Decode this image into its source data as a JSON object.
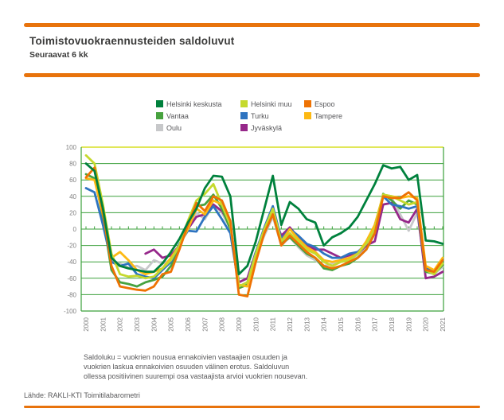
{
  "header": {
    "title": "Toimistovuokraennusteiden saldoluvut",
    "subtitle": "Seuraavat 6 kk"
  },
  "caption": "Saldoluku = vuokrien nousua ennakoivien vastaajien osuuden ja\nvuokrien laskua ennakoivien osuuden välinen erotus. Saldoluvun\nollessa positiivinen suurempi osa vastaajista arvioi vuokrien nousevan.",
  "source": "Lähde: RAKLI-KTI Toimitilabarometri",
  "colors": {
    "accent_orange": "#E8730C",
    "text_dark": "#3B3B3A",
    "text_gray": "#58585A"
  },
  "chart_data": {
    "type": "line",
    "title": "Toimistovuokraennusteiden saldoluvut",
    "subtitle": "Seuraavat 6 kk",
    "xlabel": "",
    "ylabel": "",
    "ylim": [
      -100,
      100
    ],
    "ytick_step": 20,
    "yticks": [
      100,
      80,
      60,
      40,
      20,
      0,
      -20,
      -40,
      -60,
      -80,
      -100
    ],
    "x_tick_labels": [
      "2000",
      "2001",
      "2002",
      "2003",
      "2004",
      "2005",
      "2006",
      "2007",
      "2008",
      "2009",
      "2010",
      "2011",
      "2012",
      "2013",
      "2014",
      "2015",
      "2016",
      "2017",
      "2018",
      "2019",
      "2020",
      "2021"
    ],
    "x_resolution": "semiannual",
    "grid": true,
    "grid_color": "#3BA13B",
    "top_border_color": "#D7DF23",
    "axis_label_color": "#7F7F7F",
    "legend_position": "top",
    "series": [
      {
        "name": "Helsinki keskusta",
        "color": "#00813D",
        "values": [
          80,
          71,
          25,
          -35,
          -45,
          -48,
          -50,
          -52,
          -52,
          -42,
          -28,
          -12,
          8,
          25,
          50,
          65,
          64,
          40,
          -55,
          -45,
          -15,
          25,
          65,
          5,
          33,
          25,
          12,
          8,
          -20,
          -10,
          -5,
          2,
          15,
          35,
          55,
          78,
          74,
          76,
          60,
          66,
          -14,
          -15,
          -18
        ]
      },
      {
        "name": "Helsinki muu",
        "color": "#C5D92D",
        "values": [
          90,
          80,
          30,
          -30,
          -55,
          -58,
          -57,
          -60,
          -58,
          -48,
          -38,
          -20,
          10,
          35,
          43,
          55,
          30,
          5,
          -70,
          -65,
          -30,
          0,
          25,
          -15,
          -5,
          -15,
          -25,
          -30,
          -40,
          -45,
          -40,
          -38,
          -30,
          -18,
          0,
          42,
          40,
          35,
          30,
          33,
          -50,
          -55,
          -42
        ]
      },
      {
        "name": "Espoo",
        "color": "#EE7203",
        "values": [
          63,
          75,
          20,
          -45,
          -70,
          -72,
          -74,
          -75,
          -70,
          -55,
          -52,
          -25,
          5,
          32,
          22,
          40,
          35,
          10,
          -80,
          -82,
          -40,
          -5,
          18,
          -20,
          -8,
          -18,
          -28,
          -35,
          -45,
          -48,
          -45,
          -40,
          -35,
          -25,
          -5,
          40,
          38,
          38,
          45,
          35,
          -50,
          -52,
          -38
        ]
      },
      {
        "name": "Vantaa",
        "color": "#47A23F",
        "values": [
          67,
          62,
          15,
          -50,
          -65,
          -67,
          -70,
          -65,
          -62,
          -58,
          -45,
          -22,
          8,
          28,
          30,
          42,
          25,
          0,
          -72,
          -68,
          -35,
          -2,
          22,
          -18,
          -10,
          -20,
          -30,
          -35,
          -48,
          -50,
          -45,
          -42,
          -35,
          -25,
          -5,
          43,
          35,
          25,
          35,
          30,
          -52,
          -54,
          -44
        ]
      },
      {
        "name": "Turku",
        "color": "#2E74C0",
        "values": [
          50,
          45,
          5,
          -40,
          -45,
          -42,
          -55,
          -58,
          -60,
          -50,
          -40,
          -18,
          -2,
          -3,
          15,
          28,
          12,
          -5,
          -70,
          -65,
          -28,
          2,
          28,
          -12,
          0,
          -8,
          -18,
          -22,
          -30,
          -35,
          -35,
          -30,
          -28,
          -18,
          5,
          40,
          30,
          28,
          25,
          28,
          -48,
          -52,
          -37
        ]
      },
      {
        "name": "Tampere",
        "color": "#FDB913",
        "values": [
          62,
          60,
          18,
          -35,
          -28,
          -38,
          -50,
          -55,
          -52,
          -48,
          -35,
          -20,
          0,
          25,
          18,
          35,
          30,
          5,
          -68,
          -70,
          -32,
          -5,
          20,
          -15,
          0,
          -12,
          -22,
          -28,
          -38,
          -40,
          -38,
          -35,
          -30,
          -15,
          5,
          42,
          40,
          38,
          40,
          38,
          -45,
          -50,
          -35
        ]
      },
      {
        "name": "Oulu",
        "color": "#C7C8CA",
        "values": [
          null,
          null,
          null,
          -38,
          -42,
          -47,
          -45,
          -50,
          -38,
          -42,
          -38,
          -20,
          2,
          20,
          12,
          30,
          20,
          0,
          -72,
          -68,
          -30,
          -8,
          15,
          -20,
          -10,
          -22,
          -32,
          -38,
          -45,
          -42,
          -40,
          -38,
          -32,
          -22,
          -5,
          40,
          38,
          18,
          -2,
          20,
          -52,
          -55,
          -46
        ]
      },
      {
        "name": "Jyväskylä",
        "color": "#96288A",
        "values": [
          null,
          null,
          null,
          null,
          null,
          null,
          null,
          -30,
          -25,
          -35,
          -32,
          -20,
          0,
          15,
          18,
          30,
          22,
          5,
          -65,
          -60,
          -28,
          -5,
          18,
          -8,
          2,
          -10,
          -20,
          -25,
          -25,
          -30,
          -35,
          -32,
          -30,
          -20,
          -15,
          30,
          32,
          12,
          8,
          25,
          -60,
          -58,
          -52
        ]
      }
    ],
    "draw_order": [
      6,
      7,
      3,
      4,
      5,
      1,
      2,
      0
    ]
  }
}
